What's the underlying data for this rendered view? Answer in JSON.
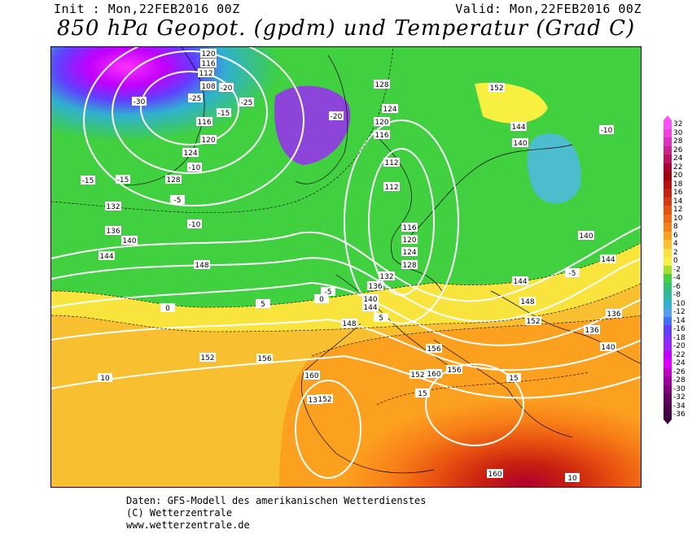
{
  "header": {
    "init": "Init : Mon,22FEB2016 00Z",
    "valid": "Valid: Mon,22FEB2016 00Z",
    "title": "850 hPa Geopot. (gpdm) und Temperatur (Grad C)"
  },
  "scale": {
    "labels": [
      "32",
      "30",
      "28",
      "26",
      "24",
      "22",
      "20",
      "18",
      "16",
      "14",
      "12",
      "10",
      "8",
      "6",
      "4",
      "2",
      "0",
      "-2",
      "-4",
      "-6",
      "-8",
      "-10",
      "-12",
      "-14",
      "-16",
      "-18",
      "-20",
      "-22",
      "-24",
      "-26",
      "-28",
      "-30",
      "-32",
      "-34",
      "-36"
    ],
    "colors": [
      "#ff50ff",
      "#f040e0",
      "#e030c0",
      "#d02090",
      "#c01060",
      "#b00030",
      "#a00010",
      "#b81010",
      "#c82010",
      "#d83810",
      "#e85010",
      "#f06810",
      "#f88018",
      "#fca020",
      "#ffc030",
      "#ffe040",
      "#f8f040",
      "#a0e030",
      "#40d040",
      "#30c070",
      "#30b8a0",
      "#30b0d0",
      "#50a0f0",
      "#4070ff",
      "#6040ff",
      "#8030ff",
      "#a020ff",
      "#c000ff",
      "#e000ff",
      "#c000c0",
      "#a000a0",
      "#800080",
      "#600060",
      "#500050",
      "#400040"
    ]
  },
  "map": {
    "geopotential_labels": [
      {
        "text": "120"
      },
      {
        "text": "116"
      },
      {
        "text": "112"
      },
      {
        "text": "108"
      },
      {
        "text": "116"
      },
      {
        "text": "120"
      },
      {
        "text": "124"
      },
      {
        "text": "128"
      },
      {
        "text": "132"
      },
      {
        "text": "136"
      },
      {
        "text": "140"
      },
      {
        "text": "144"
      },
      {
        "text": "148"
      },
      {
        "text": "152"
      },
      {
        "text": "156"
      },
      {
        "text": "160"
      },
      {
        "text": "132"
      },
      {
        "text": "128"
      },
      {
        "text": "124"
      },
      {
        "text": "120"
      },
      {
        "text": "116"
      },
      {
        "text": "112"
      },
      {
        "text": "112"
      },
      {
        "text": "116"
      },
      {
        "text": "120"
      },
      {
        "text": "124"
      },
      {
        "text": "128"
      },
      {
        "text": "132"
      },
      {
        "text": "136"
      },
      {
        "text": "140"
      },
      {
        "text": "144"
      },
      {
        "text": "148"
      },
      {
        "text": "152"
      },
      {
        "text": "156"
      },
      {
        "text": "144"
      },
      {
        "text": "140"
      },
      {
        "text": "152"
      },
      {
        "text": "144"
      },
      {
        "text": "156"
      },
      {
        "text": "152"
      },
      {
        "text": "160"
      },
      {
        "text": "160"
      },
      {
        "text": "140"
      },
      {
        "text": "136"
      },
      {
        "text": "144"
      },
      {
        "text": "140"
      },
      {
        "text": "148"
      },
      {
        "text": "152"
      },
      {
        "text": "136"
      }
    ],
    "temperature_labels": [
      {
        "text": "-30"
      },
      {
        "text": "-25"
      },
      {
        "text": "-20"
      },
      {
        "text": "-15"
      },
      {
        "text": "-10"
      },
      {
        "text": "-5"
      },
      {
        "text": "0"
      },
      {
        "text": "5"
      },
      {
        "text": "10"
      },
      {
        "text": "15"
      },
      {
        "text": "-15"
      },
      {
        "text": "-10"
      },
      {
        "text": "-5"
      },
      {
        "text": "0"
      },
      {
        "text": "5"
      },
      {
        "text": "10"
      },
      {
        "text": "15"
      },
      {
        "text": "-10"
      },
      {
        "text": "-5"
      },
      {
        "text": "-15"
      },
      {
        "text": "-20"
      },
      {
        "text": "-25"
      }
    ]
  },
  "footer": {
    "line1": "Daten: GFS-Modell des amerikanischen Wetterdienstes",
    "line2": "(C) Wetterzentrale",
    "line3": "www.wetterzentrale.de"
  }
}
